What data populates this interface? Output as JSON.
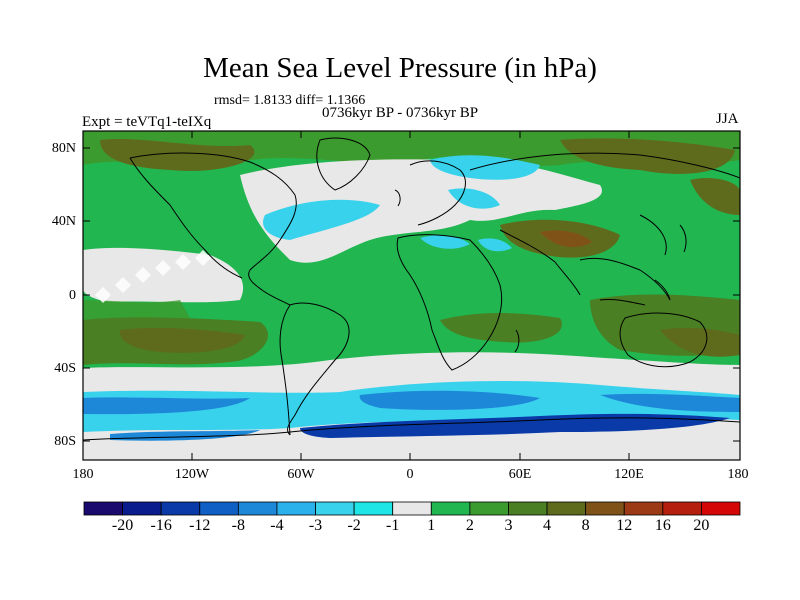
{
  "title": "Mean Sea Level Pressure (in hPa)",
  "stats": "rmsd= 1.8133  diff= 1.1366",
  "period": "0736kyr BP - 0736kyr BP",
  "experiment": "Expt = teVTq1-teIXq",
  "season": "JJA",
  "lat_labels": [
    "80N",
    "40N",
    "0",
    "40S",
    "80S"
  ],
  "lon_labels": [
    "180",
    "120W",
    "60W",
    "0",
    "60E",
    "120E",
    "180"
  ],
  "colorbar": {
    "colors": [
      "#1a0a6e",
      "#0a1d8c",
      "#0a3aa8",
      "#0f5fc4",
      "#1e88d8",
      "#2ab0ea",
      "#39d2ec",
      "#1ee6e6",
      "#e8e8e8",
      "#21b650",
      "#3c9b2e",
      "#4a7f23",
      "#5f6b1c",
      "#7f5318",
      "#9b3a14",
      "#b5200e",
      "#d40606"
    ],
    "labels": [
      "-20",
      "-16",
      "-12",
      "-8",
      "-4",
      "-3",
      "-2",
      "-1",
      "1",
      "2",
      "3",
      "4",
      "8",
      "12",
      "16",
      "20"
    ]
  },
  "legend_colors": {
    "land_green": "#21b650",
    "dark_green": "#3c9b2e",
    "olive": "#4a7f23",
    "brown": "#5f6b1c",
    "gray": "#e8e8e8",
    "cyan": "#39d2ec",
    "blue": "#1e88d8",
    "navy": "#0a3aa8"
  }
}
